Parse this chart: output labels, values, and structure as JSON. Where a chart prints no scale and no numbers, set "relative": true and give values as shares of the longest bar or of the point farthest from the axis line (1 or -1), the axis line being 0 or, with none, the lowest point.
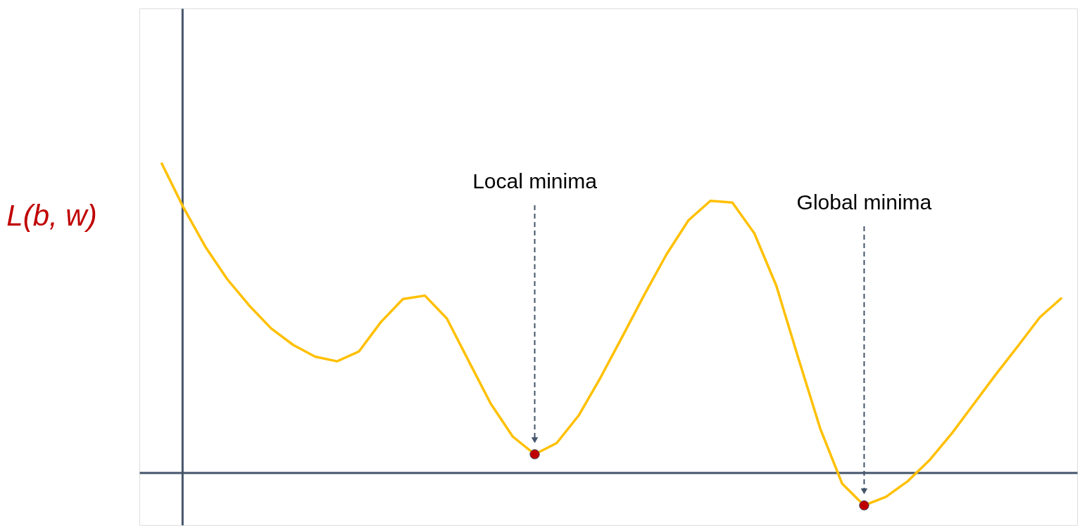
{
  "chart_data": {
    "type": "line",
    "ylabel": "L(b, w)",
    "relative": true,
    "categories": [
      null,
      null,
      null,
      null,
      null,
      null,
      null,
      null,
      null,
      null,
      null,
      null,
      null,
      null,
      null,
      null,
      null,
      null,
      null,
      null,
      null,
      null,
      null,
      null,
      null,
      null,
      null,
      null,
      null,
      null,
      null,
      null,
      null,
      null,
      null,
      null,
      null,
      null,
      null,
      null,
      null,
      null
    ],
    "series": [
      {
        "type": "line",
        "color": "#ffc000",
        "values": [
          1.0,
          0.856,
          0.729,
          0.624,
          0.539,
          0.465,
          0.412,
          0.374,
          0.359,
          0.391,
          0.486,
          0.56,
          0.571,
          0.497,
          0.359,
          0.222,
          0.116,
          0.059,
          0.095,
          0.184,
          0.307,
          0.44,
          0.575,
          0.704,
          0.814,
          0.877,
          0.871,
          0.772,
          0.603,
          0.37,
          0.142,
          -0.036,
          -0.106,
          -0.078,
          -0.027,
          0.042,
          0.127,
          0.222,
          0.317,
          0.408,
          0.501,
          0.564
        ]
      }
    ],
    "annotations": [
      "Local minima",
      "Global minima"
    ]
  }
}
